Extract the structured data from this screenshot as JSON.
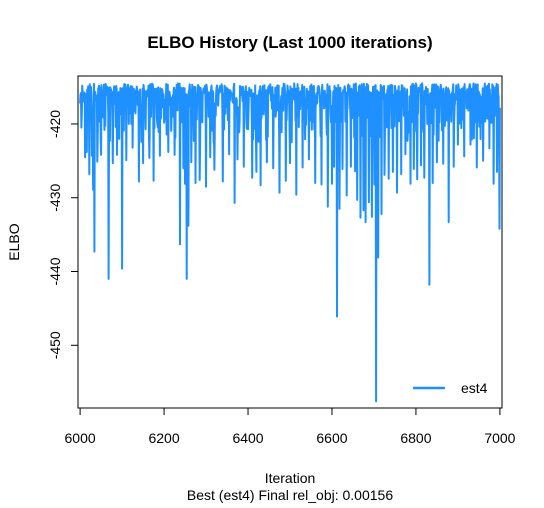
{
  "chart_data": {
    "type": "line",
    "title": "ELBO History (Last 1000 iterations)",
    "xlabel": "Iteration",
    "ylabel": "ELBO",
    "subtitle": "Best (est4) Final rel_obj: 0.00156",
    "xlim": [
      5995,
      7005
    ],
    "ylim": [
      -458.5,
      -413.5
    ],
    "x_ticks": [
      6000,
      6200,
      6400,
      6600,
      6800,
      7000
    ],
    "y_ticks": [
      -420,
      -430,
      -440,
      -450
    ],
    "legend": {
      "placement": "bottom-right",
      "entries": [
        "est4"
      ]
    },
    "grid": false,
    "series": [
      {
        "name": "est4",
        "color": "#1E90FF",
        "x_start": 6000,
        "x_step": 1,
        "baseline": [
          -420,
          -414.5
        ],
        "dips": [
          [
            6003,
            -420.5
          ],
          [
            6012,
            -424.5
          ],
          [
            6016,
            -423.8
          ],
          [
            6022,
            -426.8
          ],
          [
            6028,
            -424.3
          ],
          [
            6031,
            -428.9
          ],
          [
            6034,
            -437.3
          ],
          [
            6041,
            -425.1
          ],
          [
            6050,
            -424.2
          ],
          [
            6058,
            -420.8
          ],
          [
            6068,
            -441.0
          ],
          [
            6078,
            -425.3
          ],
          [
            6088,
            -424.2
          ],
          [
            6100,
            -439.6
          ],
          [
            6110,
            -424.9
          ],
          [
            6125,
            -423.2
          ],
          [
            6140,
            -427.8
          ],
          [
            6150,
            -425.3
          ],
          [
            6165,
            -424.6
          ],
          [
            6175,
            -427.7
          ],
          [
            6190,
            -424.3
          ],
          [
            6210,
            -423.8
          ],
          [
            6225,
            -424.2
          ],
          [
            6238,
            -436.3
          ],
          [
            6246,
            -426.0
          ],
          [
            6250,
            -428.1
          ],
          [
            6254,
            -441.0
          ],
          [
            6258,
            -433.8
          ],
          [
            6265,
            -425.2
          ],
          [
            6275,
            -428.0
          ],
          [
            6285,
            -427.6
          ],
          [
            6300,
            -428.5
          ],
          [
            6310,
            -424.5
          ],
          [
            6320,
            -426.2
          ],
          [
            6340,
            -427.8
          ],
          [
            6355,
            -424.1
          ],
          [
            6368,
            -430.7
          ],
          [
            6375,
            -424.8
          ],
          [
            6390,
            -425.8
          ],
          [
            6410,
            -427.3
          ],
          [
            6420,
            -426.5
          ],
          [
            6430,
            -428.3
          ],
          [
            6445,
            -425.2
          ],
          [
            6460,
            -426.0
          ],
          [
            6475,
            -429.3
          ],
          [
            6490,
            -427.7
          ],
          [
            6500,
            -425.3
          ],
          [
            6515,
            -429.6
          ],
          [
            6530,
            -425.9
          ],
          [
            6545,
            -424.8
          ],
          [
            6560,
            -428.0
          ],
          [
            6575,
            -428.2
          ],
          [
            6590,
            -431.2
          ],
          [
            6600,
            -428.1
          ],
          [
            6605,
            -425.8
          ],
          [
            6612,
            -446.1
          ],
          [
            6618,
            -431.5
          ],
          [
            6625,
            -426.1
          ],
          [
            6635,
            -429.7
          ],
          [
            6645,
            -425.8
          ],
          [
            6655,
            -426.4
          ],
          [
            6660,
            -430.3
          ],
          [
            6668,
            -432.7
          ],
          [
            6675,
            -431.7
          ],
          [
            6680,
            -433.3
          ],
          [
            6688,
            -430.6
          ],
          [
            6695,
            -432.6
          ],
          [
            6701,
            -428.2
          ],
          [
            6705,
            -457.6
          ],
          [
            6710,
            -438.1
          ],
          [
            6718,
            -432.2
          ],
          [
            6725,
            -426.9
          ],
          [
            6735,
            -427.4
          ],
          [
            6745,
            -426.5
          ],
          [
            6755,
            -429.3
          ],
          [
            6765,
            -426.8
          ],
          [
            6775,
            -424.1
          ],
          [
            6787,
            -428.1
          ],
          [
            6795,
            -426.1
          ],
          [
            6803,
            -427.5
          ],
          [
            6812,
            -425.6
          ],
          [
            6820,
            -427.3
          ],
          [
            6832,
            -441.8
          ],
          [
            6840,
            -428.0
          ],
          [
            6850,
            -425.2
          ],
          [
            6865,
            -425.4
          ],
          [
            6878,
            -433.3
          ],
          [
            6890,
            -425.8
          ],
          [
            6900,
            -422.8
          ],
          [
            6915,
            -424.4
          ],
          [
            6930,
            -422.8
          ],
          [
            6945,
            -425.9
          ],
          [
            6960,
            -425.0
          ],
          [
            6975,
            -423.3
          ],
          [
            6985,
            -428.1
          ],
          [
            6993,
            -426.5
          ],
          [
            6999,
            -434.2
          ]
        ]
      }
    ]
  }
}
